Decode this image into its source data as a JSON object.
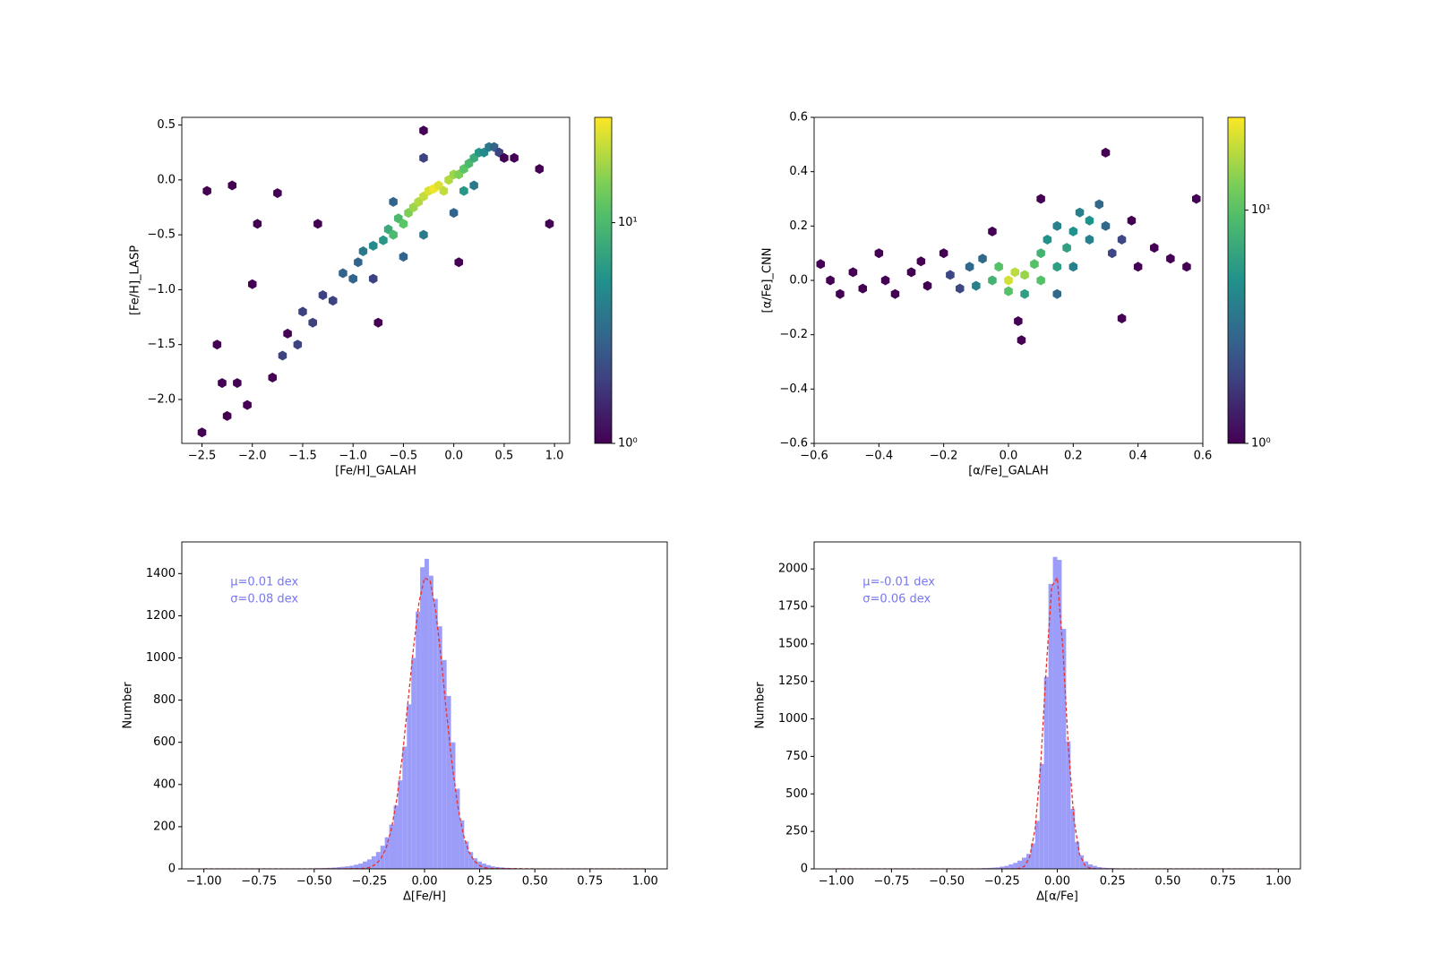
{
  "chart_data": [
    {
      "type": "hexbin",
      "xlabel": "[Fe/H]_GALAH",
      "ylabel": "[Fe/H]_LASP",
      "xlim": [
        -2.7,
        1.15
      ],
      "ylim": [
        -2.4,
        0.57
      ],
      "xticks": [
        {
          "value": -2.5,
          "label": "−2.5"
        },
        {
          "value": -2.0,
          "label": "−2.0"
        },
        {
          "value": -1.5,
          "label": "−1.5"
        },
        {
          "value": -1.0,
          "label": "−1.0"
        },
        {
          "value": -0.5,
          "label": "−0.5"
        },
        {
          "value": 0,
          "label": "0.0"
        },
        0.5,
        {
          "value": 1,
          "label": "1.0"
        }
      ],
      "yticks": [
        {
          "value": -2.0,
          "label": "−2.0"
        },
        {
          "value": -1.5,
          "label": "−1.5"
        },
        {
          "value": -1.0,
          "label": "−1.0"
        },
        {
          "value": -0.5,
          "label": "−0.5"
        },
        {
          "value": 0,
          "label": "0.0"
        },
        0.5
      ],
      "colorbar_lim": [
        1,
        30
      ],
      "colorbar_ticks": [
        {
          "value": 1,
          "label": "10⁰"
        },
        {
          "value": 10,
          "label": "10¹"
        }
      ],
      "log_color": true,
      "x": [
        -2.5,
        -2.45,
        -2.35,
        -2.3,
        -2.25,
        -2.2,
        -2.15,
        -2.05,
        -2.0,
        -1.95,
        -1.8,
        -1.75,
        -1.7,
        -1.65,
        -1.55,
        -1.5,
        -1.4,
        -1.35,
        -1.3,
        -1.2,
        -1.1,
        -1.0,
        -0.95,
        -0.9,
        -0.8,
        -0.75,
        -0.7,
        -0.65,
        -0.6,
        -0.55,
        -0.5,
        -0.45,
        -0.4,
        -0.35,
        -0.3,
        -0.25,
        -0.2,
        -0.15,
        -0.1,
        -0.05,
        0.0,
        0.05,
        0.1,
        0.15,
        0.2,
        0.25,
        0.3,
        0.35,
        0.4,
        0.45,
        0.5,
        0.6,
        0.85,
        0.95,
        -0.5,
        -0.3,
        0.0,
        0.1,
        -0.6,
        -0.3,
        0.2,
        -0.3,
        -0.8,
        0.05
      ],
      "y": [
        -2.3,
        -0.1,
        -1.5,
        -1.85,
        -2.15,
        -0.05,
        -1.85,
        -2.05,
        -0.95,
        -0.4,
        -1.8,
        -0.12,
        -1.6,
        -1.4,
        -1.5,
        -1.2,
        -1.3,
        -0.4,
        -1.05,
        -1.1,
        -0.85,
        -0.9,
        -0.75,
        -0.65,
        -0.6,
        -1.3,
        -0.55,
        -0.45,
        -0.5,
        -0.35,
        -0.4,
        -0.3,
        -0.25,
        -0.2,
        -0.15,
        -0.1,
        -0.08,
        -0.05,
        -0.1,
        0.0,
        0.05,
        0.05,
        0.1,
        0.15,
        0.2,
        0.25,
        0.25,
        0.3,
        0.3,
        0.25,
        0.2,
        0.2,
        0.1,
        -0.4,
        -0.7,
        -0.5,
        -0.3,
        -0.1,
        -0.2,
        0.2,
        -0.05,
        0.45,
        -0.9,
        -0.75
      ],
      "counts": [
        1,
        1,
        1,
        1,
        1,
        1,
        1,
        1,
        1,
        1,
        1,
        1,
        2,
        1,
        2,
        2,
        2,
        1,
        2,
        2,
        3,
        3,
        3,
        4,
        5,
        1,
        6,
        8,
        10,
        10,
        12,
        15,
        18,
        20,
        22,
        25,
        28,
        25,
        22,
        20,
        18,
        15,
        12,
        10,
        8,
        6,
        5,
        4,
        3,
        2,
        1,
        1,
        1,
        1,
        3,
        4,
        3,
        6,
        3,
        2,
        4,
        1,
        2,
        1
      ]
    },
    {
      "type": "hexbin",
      "xlabel": "[α/Fe]_GALAH",
      "ylabel": "[α/Fe]_CNN",
      "xlim": [
        -0.6,
        0.6
      ],
      "ylim": [
        -0.6,
        0.6
      ],
      "xticks": [
        {
          "value": -0.6,
          "label": "−0.6"
        },
        {
          "value": -0.4,
          "label": "−0.4"
        },
        {
          "value": -0.2,
          "label": "−0.2"
        },
        {
          "value": 0,
          "label": "0.0"
        },
        0.2,
        0.4,
        0.6
      ],
      "yticks": [
        {
          "value": -0.6,
          "label": "−0.6"
        },
        {
          "value": -0.4,
          "label": "−0.4"
        },
        {
          "value": -0.2,
          "label": "−0.2"
        },
        {
          "value": 0,
          "label": "0.0"
        },
        0.2,
        0.4,
        0.6
      ],
      "colorbar_lim": [
        1,
        25
      ],
      "colorbar_ticks": [
        {
          "value": 1,
          "label": "10⁰"
        },
        {
          "value": 10,
          "label": "10¹"
        }
      ],
      "log_color": true,
      "x": [
        -0.58,
        -0.55,
        -0.52,
        -0.48,
        -0.45,
        -0.4,
        -0.38,
        -0.35,
        -0.3,
        -0.27,
        -0.25,
        -0.2,
        -0.18,
        -0.15,
        -0.12,
        -0.1,
        -0.08,
        -0.05,
        -0.03,
        0.0,
        0.02,
        0.05,
        0.0,
        0.05,
        0.08,
        0.1,
        0.1,
        0.12,
        0.15,
        0.15,
        0.18,
        0.2,
        0.22,
        0.25,
        0.25,
        0.28,
        0.3,
        0.32,
        0.35,
        0.38,
        0.4,
        0.45,
        0.5,
        0.55,
        0.58,
        0.3,
        0.03,
        0.04,
        0.1,
        -0.05,
        0.35,
        0.15,
        0.2
      ],
      "y": [
        0.06,
        0.0,
        -0.05,
        0.03,
        -0.03,
        0.1,
        0.0,
        -0.05,
        0.03,
        0.07,
        -0.02,
        0.1,
        0.02,
        -0.03,
        0.05,
        -0.02,
        0.08,
        0.0,
        0.05,
        0.0,
        0.03,
        0.02,
        -0.04,
        -0.05,
        0.06,
        0.1,
        0.0,
        0.15,
        0.05,
        0.2,
        0.12,
        0.18,
        0.25,
        0.15,
        0.22,
        0.28,
        0.2,
        0.1,
        0.15,
        0.22,
        0.05,
        0.12,
        0.08,
        0.05,
        0.3,
        0.47,
        -0.15,
        -0.22,
        0.3,
        0.18,
        -0.14,
        -0.05,
        0.05
      ],
      "counts": [
        1,
        1,
        1,
        1,
        1,
        1,
        1,
        1,
        1,
        1,
        1,
        1,
        2,
        2,
        3,
        4,
        3,
        8,
        10,
        20,
        18,
        15,
        10,
        6,
        10,
        8,
        10,
        5,
        6,
        4,
        6,
        5,
        4,
        4,
        5,
        3,
        3,
        2,
        2,
        1,
        1,
        1,
        1,
        1,
        1,
        1,
        1,
        1,
        1,
        1,
        1,
        3,
        4
      ]
    },
    {
      "type": "histogram",
      "xlabel": "Δ[Fe/H]",
      "ylabel": "Number",
      "color": "#9c9cf9",
      "annotations": [
        "μ=0.01 dex",
        "σ=0.08 dex"
      ],
      "annotation_color": "#7777f2",
      "xlim": [
        -1.1,
        1.1
      ],
      "ylim": [
        0,
        1550
      ],
      "xticks": [
        {
          "value": -1,
          "label": "−1.00"
        },
        {
          "value": -0.75,
          "label": "−0.75"
        },
        {
          "value": -0.5,
          "label": "−0.50"
        },
        {
          "value": -0.25,
          "label": "−0.25"
        },
        {
          "value": 0,
          "label": "0.00"
        },
        0.25,
        {
          "value": 0.5,
          "label": "0.50"
        },
        0.75,
        {
          "value": 1,
          "label": "1.00"
        }
      ],
      "yticks": [
        0,
        200,
        400,
        600,
        800,
        1000,
        1200,
        1400
      ],
      "bins": [
        -0.5,
        -0.48,
        -0.46,
        -0.44,
        -0.42,
        -0.4,
        -0.38,
        -0.36,
        -0.34,
        -0.32,
        -0.3,
        -0.28,
        -0.26,
        -0.24,
        -0.22,
        -0.2,
        -0.18,
        -0.16,
        -0.14,
        -0.12,
        -0.1,
        -0.08,
        -0.06,
        -0.04,
        -0.02,
        0,
        0.02,
        0.04,
        0.06,
        0.08,
        0.1,
        0.12,
        0.14,
        0.16,
        0.18,
        0.2,
        0.22,
        0.24,
        0.26,
        0.28,
        0.3,
        0.32,
        0.34,
        0.36,
        0.38,
        0.4,
        0.42,
        0.44,
        0.46,
        0.48,
        0.5
      ],
      "counts": [
        3,
        3,
        4,
        5,
        6,
        8,
        10,
        12,
        15,
        20,
        25,
        35,
        45,
        60,
        80,
        110,
        150,
        210,
        300,
        420,
        580,
        780,
        1000,
        1220,
        1430,
        1470,
        1390,
        1280,
        1150,
        990,
        820,
        600,
        380,
        230,
        130,
        80,
        50,
        35,
        25,
        18,
        12,
        9,
        7,
        5,
        4,
        3,
        2,
        2,
        1,
        1
      ],
      "line": {
        "color": "#e8322b",
        "x": [
          -1,
          -0.5,
          -0.3,
          -0.275,
          -0.25,
          -0.225,
          -0.2,
          -0.175,
          -0.15,
          -0.125,
          -0.1,
          -0.075,
          -0.05,
          -0.025,
          0,
          0.025,
          0.05,
          0.075,
          0.1,
          0.125,
          0.15,
          0.175,
          0.2,
          0.225,
          0.25,
          0.275,
          0.3,
          0.5,
          1
        ],
        "values": [
          0,
          0,
          0.8,
          2.4,
          7,
          19,
          44,
          96,
          188,
          335,
          540,
          791,
          1049,
          1263,
          1379,
          1366,
          1227,
          999,
          738,
          495,
          301,
          166,
          83,
          38,
          15,
          6,
          2,
          0,
          0
        ]
      }
    },
    {
      "type": "histogram",
      "xlabel": "Δ[α/Fe]",
      "ylabel": "Number",
      "color": "#9c9cf9",
      "annotations": [
        "μ=-0.01 dex",
        "σ=0.06 dex"
      ],
      "annotation_color": "#7777f2",
      "xlim": [
        -1.1,
        1.1
      ],
      "ylim": [
        0,
        2180
      ],
      "xticks": [
        {
          "value": -1,
          "label": "−1.00"
        },
        {
          "value": -0.75,
          "label": "−0.75"
        },
        {
          "value": -0.5,
          "label": "−0.50"
        },
        {
          "value": -0.25,
          "label": "−0.25"
        },
        {
          "value": 0,
          "label": "0.00"
        },
        0.25,
        {
          "value": 0.5,
          "label": "0.50"
        },
        0.75,
        {
          "value": 1,
          "label": "1.00"
        }
      ],
      "yticks": [
        0,
        250,
        500,
        750,
        1000,
        1250,
        1500,
        1750,
        2000
      ],
      "bins": [
        -0.5,
        -0.48,
        -0.46,
        -0.44,
        -0.42,
        -0.4,
        -0.38,
        -0.36,
        -0.34,
        -0.32,
        -0.3,
        -0.28,
        -0.26,
        -0.24,
        -0.22,
        -0.2,
        -0.18,
        -0.16,
        -0.14,
        -0.12,
        -0.1,
        -0.08,
        -0.06,
        -0.04,
        -0.02,
        0,
        0.02,
        0.04,
        0.06,
        0.08,
        0.1,
        0.12,
        0.14,
        0.16,
        0.18,
        0.2,
        0.22,
        0.24,
        0.26,
        0.28,
        0.3,
        0.32,
        0.34,
        0.36,
        0.38,
        0.4,
        0.42,
        0.44,
        0.46,
        0.48,
        0.5
      ],
      "counts": [
        1,
        1,
        2,
        2,
        2,
        3,
        3,
        4,
        5,
        6,
        8,
        10,
        15,
        20,
        30,
        40,
        55,
        75,
        100,
        170,
        320,
        700,
        1280,
        1900,
        2080,
        2060,
        1600,
        850,
        400,
        180,
        90,
        50,
        30,
        20,
        12,
        8,
        6,
        5,
        4,
        3,
        2,
        2,
        1,
        1,
        1,
        1,
        1,
        1,
        1,
        1
      ],
      "line": {
        "color": "#e8322b",
        "x": [
          -1,
          -0.5,
          -0.3,
          -0.25,
          -0.2,
          -0.175,
          -0.15,
          -0.125,
          -0.1,
          -0.075,
          -0.05,
          -0.025,
          0,
          0.025,
          0.05,
          0.075,
          0.1,
          0.125,
          0.15,
          0.175,
          0.2,
          0.25,
          0.3,
          0.5,
          1
        ],
        "values": [
          0,
          0,
          0,
          0,
          0.3,
          2.4,
          16,
          76,
          269,
          701,
          1341,
          1883,
          1941,
          1471,
          818,
          334,
          100,
          22,
          4,
          0.4,
          0,
          0,
          0,
          0,
          0
        ]
      }
    }
  ]
}
